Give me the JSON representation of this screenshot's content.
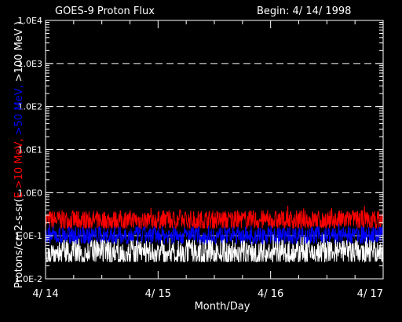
{
  "chart_data": {
    "type": "line",
    "title": "GOES-9 Proton Flux",
    "begin_label": "Begin: 4/ 14/ 1998",
    "xlabel": "Month/Day",
    "ylabel_parts": [
      {
        "text": "Protons/cm2-s-sr(",
        "color": "#ffffff"
      },
      {
        "text": "E >10 MeV, ",
        "color": "#ff0000"
      },
      {
        "text": ">50 MeV, ",
        "color": "#0000ff"
      },
      {
        "text": ">100 MeV )",
        "color": "#ffffff"
      }
    ],
    "x_ticks": [
      "4/ 14",
      "4/ 15",
      "4/ 16",
      "4/ 17"
    ],
    "x_range_days": [
      0,
      3
    ],
    "y_scale": "log",
    "ylim": [
      0.01,
      10000
    ],
    "y_ticks": [
      "1.0E-2",
      "1.0E-1",
      "1.0E0",
      "1.0E1",
      "1.0E2",
      "1.0E3",
      "1.0E4"
    ],
    "grid": "horizontal dashed",
    "series": [
      {
        "color": "#ff0000",
        "base": 0.23,
        "min": 0.15,
        "max": 0.5
      },
      {
        "color": "#0000ff",
        "base": 0.1,
        "min": 0.065,
        "max": 0.2
      },
      {
        "color": "#ffffff",
        "base": 0.04,
        "min": 0.025,
        "max": 0.12
      }
    ]
  }
}
